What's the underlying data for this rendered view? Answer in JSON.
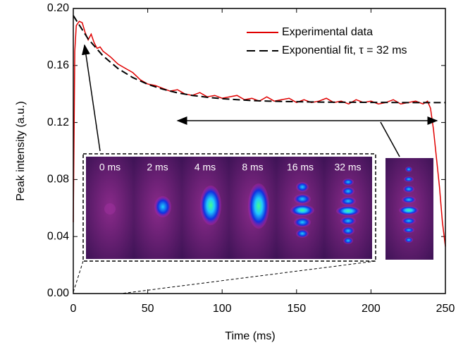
{
  "chart_data": {
    "type": "line",
    "x_label": "Time (ms)",
    "y_label": "Peak intensity (a.u.)",
    "xlim": [
      0,
      250
    ],
    "xticks": [
      0,
      50,
      100,
      150,
      200,
      250
    ],
    "ylim": [
      0,
      0.2
    ],
    "yticks": [
      {
        "value": 0,
        "label": "0.00"
      },
      0.04,
      0.08,
      0.12,
      0.16,
      {
        "value": 0.2,
        "label": "0.20"
      }
    ],
    "legend": "upper right",
    "inset_labels": [
      "0 ms",
      "2 ms",
      "4 ms",
      "8 ms",
      "16 ms",
      "32 ms"
    ],
    "series": [
      {
        "name": "Experimental data",
        "color": "#e00000",
        "dash": false,
        "x": [
          0,
          1,
          2,
          4,
          6,
          8,
          10,
          12,
          14,
          16,
          18,
          20,
          25,
          30,
          35,
          40,
          45,
          50,
          55,
          60,
          65,
          70,
          75,
          80,
          85,
          90,
          95,
          100,
          105,
          110,
          115,
          120,
          125,
          130,
          135,
          140,
          145,
          150,
          155,
          160,
          165,
          170,
          175,
          180,
          185,
          190,
          195,
          200,
          205,
          210,
          215,
          220,
          225,
          230,
          235,
          238,
          240,
          242,
          244,
          246,
          248,
          250
        ],
        "values": [
          0.05,
          0.17,
          0.188,
          0.191,
          0.19,
          0.183,
          0.178,
          0.182,
          0.176,
          0.172,
          0.173,
          0.17,
          0.166,
          0.161,
          0.158,
          0.155,
          0.15,
          0.147,
          0.146,
          0.144,
          0.142,
          0.143,
          0.14,
          0.139,
          0.141,
          0.138,
          0.139,
          0.137,
          0.138,
          0.139,
          0.136,
          0.137,
          0.135,
          0.138,
          0.135,
          0.136,
          0.137,
          0.134,
          0.136,
          0.134,
          0.135,
          0.137,
          0.134,
          0.135,
          0.133,
          0.136,
          0.134,
          0.135,
          0.133,
          0.134,
          0.136,
          0.133,
          0.134,
          0.135,
          0.133,
          0.135,
          0.13,
          0.115,
          0.095,
          0.075,
          0.05,
          0.033
        ]
      },
      {
        "name": "Exponential fit, τ = 32 ms",
        "color": "#000000",
        "dash": true,
        "x": [
          0,
          10,
          20,
          30,
          40,
          50,
          60,
          70,
          80,
          90,
          100,
          110,
          120,
          130,
          140,
          150,
          160,
          170,
          180,
          190,
          200,
          210,
          220,
          230,
          240,
          250
        ],
        "values": [
          0.195,
          0.1786,
          0.1667,
          0.1579,
          0.1515,
          0.1468,
          0.1434,
          0.1408,
          0.139,
          0.1377,
          0.1367,
          0.136,
          0.1354,
          0.135,
          0.1348,
          0.1346,
          0.1344,
          0.1343,
          0.1342,
          0.1342,
          0.1341,
          0.1341,
          0.134,
          0.134,
          0.134,
          0.134
        ]
      }
    ]
  }
}
